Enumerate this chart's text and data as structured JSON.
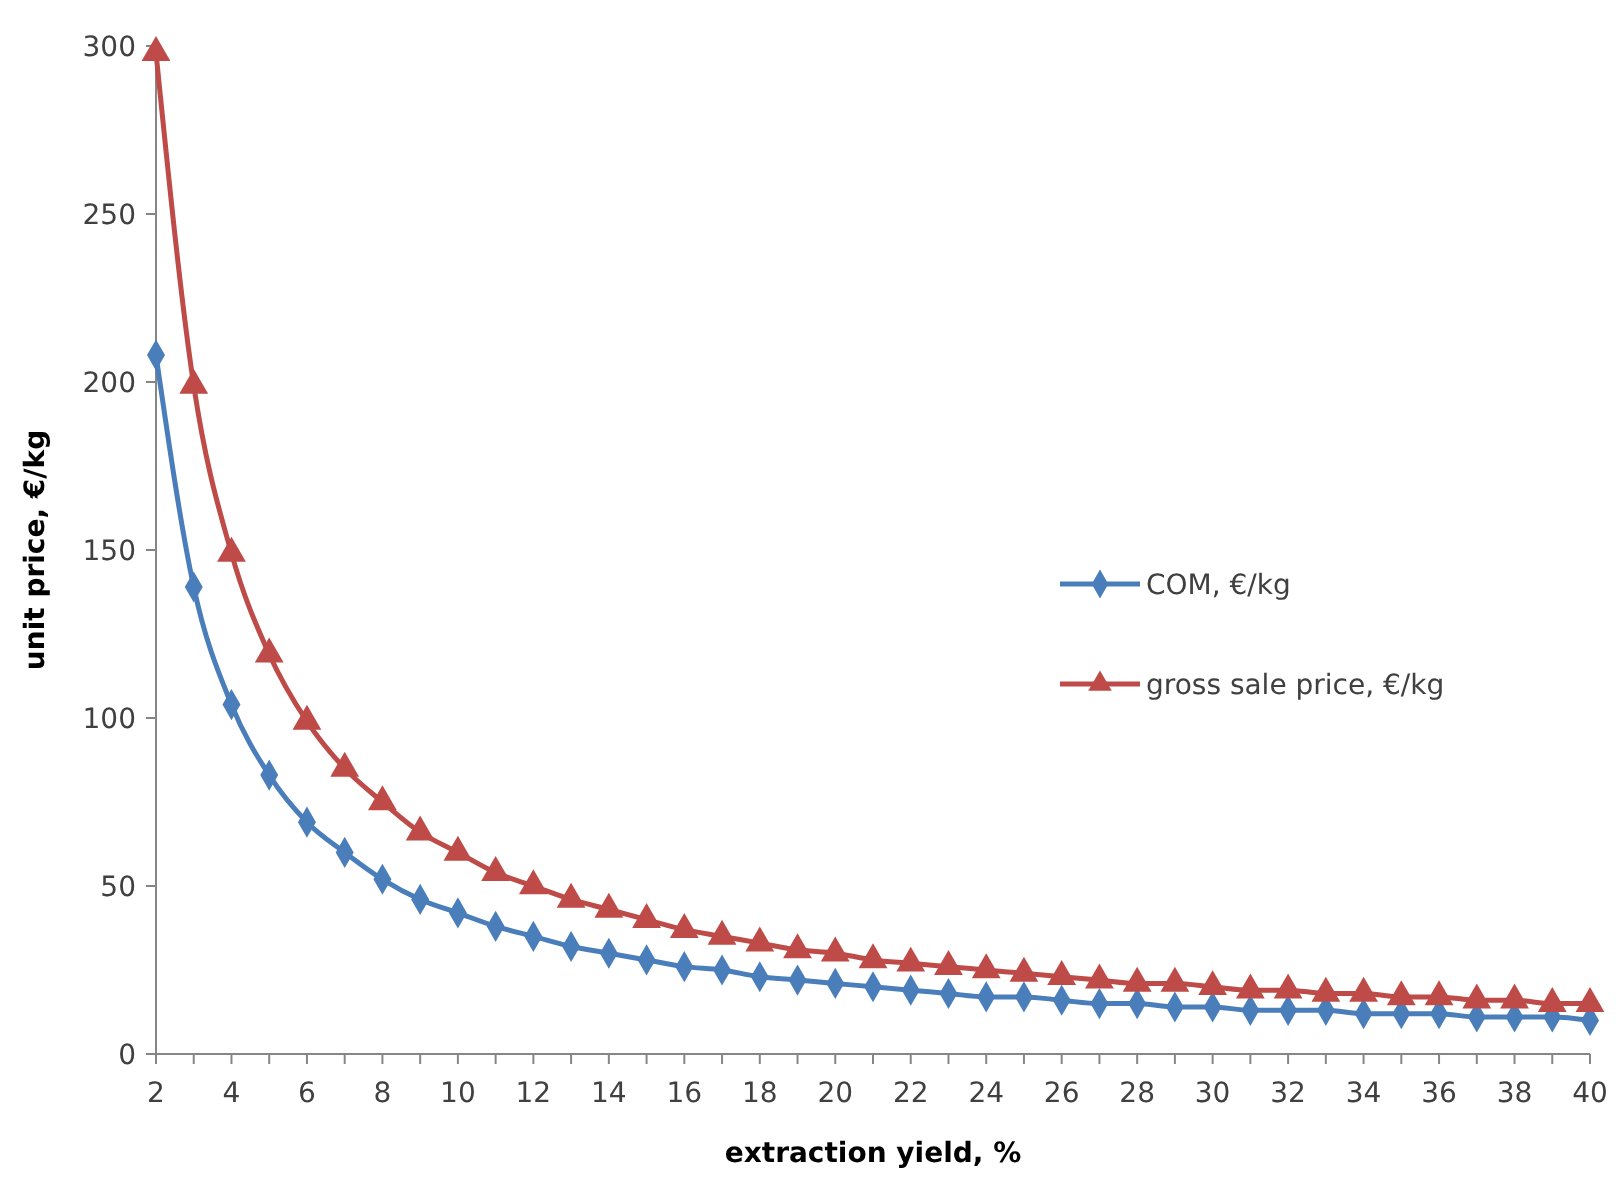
{
  "chart_data": {
    "type": "line",
    "xlabel": "extraction yield, %",
    "ylabel": "unit price, €/kg",
    "x": [
      2,
      3,
      4,
      5,
      6,
      7,
      8,
      9,
      10,
      11,
      12,
      13,
      14,
      15,
      16,
      17,
      18,
      19,
      20,
      21,
      22,
      23,
      24,
      25,
      26,
      27,
      28,
      29,
      30,
      31,
      32,
      33,
      34,
      35,
      36,
      37,
      38,
      39,
      40
    ],
    "series": [
      {
        "name": "COM, €/kg",
        "color": "#4a7ebb",
        "marker": "diamond",
        "values": [
          208,
          139,
          104,
          83,
          69,
          60,
          52,
          46,
          42,
          38,
          35,
          32,
          30,
          28,
          26,
          25,
          23,
          22,
          21,
          20,
          19,
          18,
          17,
          17,
          16,
          15,
          15,
          14,
          14,
          13,
          13,
          13,
          12,
          12,
          12,
          11,
          11,
          11,
          10
        ]
      },
      {
        "name": "gross sale price, €/kg",
        "color": "#be4b48",
        "marker": "triangle",
        "values": [
          298,
          199,
          149,
          119,
          99,
          85,
          75,
          66,
          60,
          54,
          50,
          46,
          43,
          40,
          37,
          35,
          33,
          31,
          30,
          28,
          27,
          26,
          25,
          24,
          23,
          22,
          21,
          21,
          20,
          19,
          19,
          18,
          18,
          17,
          17,
          16,
          16,
          15,
          15
        ]
      }
    ],
    "xlim": [
      2,
      40
    ],
    "xticks": [
      2,
      {
        "value": 3,
        "label": null
      },
      4,
      {
        "value": 5,
        "label": null
      },
      6,
      {
        "value": 7,
        "label": null
      },
      8,
      {
        "value": 9,
        "label": null
      },
      10,
      {
        "value": 11,
        "label": null
      },
      12,
      {
        "value": 13,
        "label": null
      },
      14,
      {
        "value": 15,
        "label": null
      },
      16,
      {
        "value": 17,
        "label": null
      },
      18,
      {
        "value": 19,
        "label": null
      },
      20,
      {
        "value": 21,
        "label": null
      },
      22,
      {
        "value": 23,
        "label": null
      },
      24,
      {
        "value": 25,
        "label": null
      },
      26,
      {
        "value": 27,
        "label": null
      },
      28,
      {
        "value": 29,
        "label": null
      },
      30,
      {
        "value": 31,
        "label": null
      },
      32,
      {
        "value": 33,
        "label": null
      },
      34,
      {
        "value": 35,
        "label": null
      },
      36,
      {
        "value": 37,
        "label": null
      },
      38,
      {
        "value": 39,
        "label": null
      },
      40
    ],
    "ylim": [
      0,
      300
    ],
    "yticks": [
      0,
      50,
      100,
      150,
      200,
      250,
      300
    ],
    "grid": false,
    "legend": "right",
    "line_style": "solid"
  }
}
